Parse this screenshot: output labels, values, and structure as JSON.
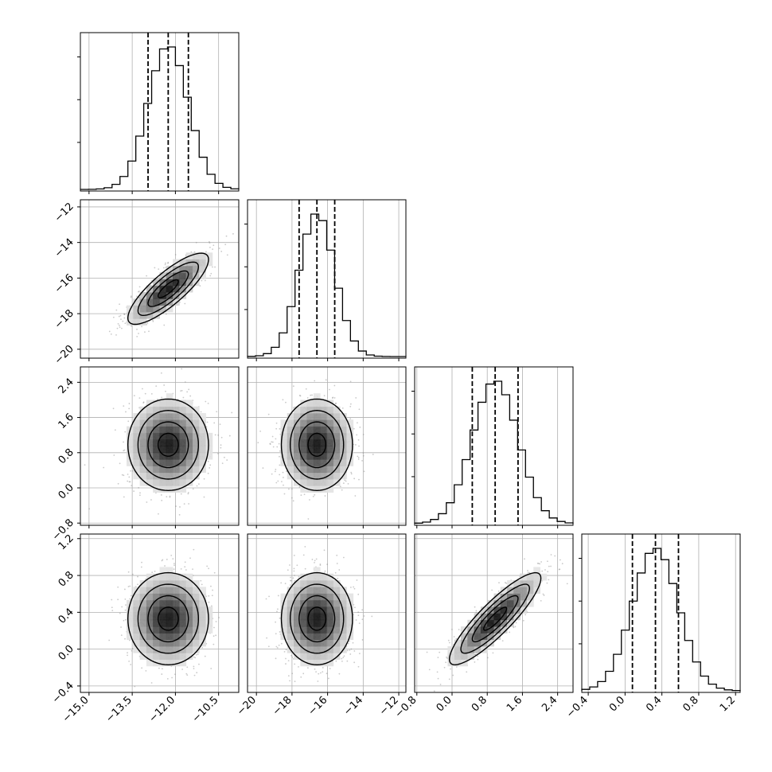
{
  "chart_data": {
    "type": "corner",
    "parameters": [
      {
        "range": [
          -15.3,
          -9.8
        ],
        "ticks": [
          -15.0,
          -13.5,
          -12.0,
          -10.5
        ],
        "tick_labels": [
          "−15.0",
          "−13.5",
          "−12.0",
          "−10.5"
        ],
        "mean": -12.25,
        "sigma": 0.7,
        "quantiles": [
          -12.95,
          -12.25,
          -11.55
        ]
      },
      {
        "range": [
          -20.5,
          -11.6
        ],
        "ticks": [
          -20,
          -18,
          -16,
          -14,
          -12
        ],
        "tick_labels": [
          "−20",
          "−18",
          "−16",
          "−14",
          "−12"
        ],
        "mean": -16.6,
        "sigma": 1.0,
        "quantiles": [
          -17.6,
          -16.6,
          -15.6
        ]
      },
      {
        "range": [
          -0.85,
          2.75
        ],
        "ticks": [
          -0.8,
          0.0,
          0.8,
          1.6,
          2.4
        ],
        "tick_labels": [
          "−0.8",
          "0.0",
          "0.8",
          "1.6",
          "2.4"
        ],
        "mean": 0.98,
        "sigma": 0.52,
        "quantiles": [
          0.46,
          0.98,
          1.5
        ]
      },
      {
        "range": [
          -0.47,
          1.25
        ],
        "ticks": [
          -0.4,
          0.0,
          0.4,
          0.8,
          1.2
        ],
        "tick_labels": [
          "−0.4",
          "0.0",
          "0.4",
          "0.8",
          "1.2"
        ],
        "mean": 0.33,
        "sigma": 0.25,
        "quantiles": [
          0.08,
          0.33,
          0.58
        ]
      }
    ],
    "correlations": [
      {
        "pair": [
          1,
          0
        ],
        "rho": 0.82
      },
      {
        "pair": [
          2,
          0
        ],
        "rho": 0.0
      },
      {
        "pair": [
          2,
          1
        ],
        "rho": 0.0
      },
      {
        "pair": [
          3,
          0
        ],
        "rho": 0.0
      },
      {
        "pair": [
          3,
          1
        ],
        "rho": 0.0
      },
      {
        "pair": [
          3,
          2
        ],
        "rho": 0.88
      }
    ],
    "hist_bins": 20,
    "contour_levels": 3,
    "grid": true,
    "colors": {
      "data": "#000000",
      "points": "#8a8a8a",
      "grid": "#b0b0b0"
    }
  }
}
